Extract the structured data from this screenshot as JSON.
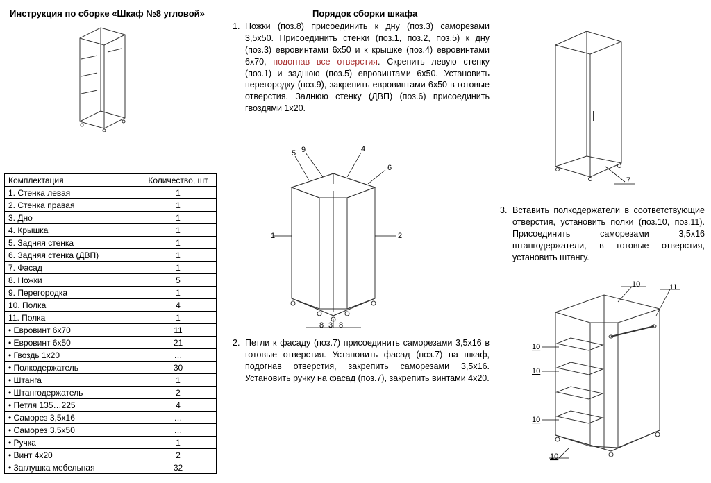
{
  "titles": {
    "left": "Инструкция по сборке «Шкаф №8 угловой»",
    "center": "Порядок сборки шкафа"
  },
  "table": {
    "headers": [
      "Комплектация",
      "Количество, шт"
    ],
    "rows": [
      [
        "1.  Стенка левая",
        "1"
      ],
      [
        "2.  Стенка правая",
        "1"
      ],
      [
        "3.  Дно",
        "1"
      ],
      [
        "4.  Крышка",
        "1"
      ],
      [
        "5.  Задняя стенка",
        "1"
      ],
      [
        "6.  Задняя стенка (ДВП)",
        "1"
      ],
      [
        "7.  Фасад",
        "1"
      ],
      [
        "8.  Ножки",
        "5"
      ],
      [
        "9.  Перегородка",
        "1"
      ],
      [
        "10.     Полка",
        "4"
      ],
      [
        "11.     Полка",
        "1"
      ],
      [
        "•   Евровинт 6х70",
        "11"
      ],
      [
        "•   Евровинт 6х50",
        "21"
      ],
      [
        "•   Гвоздь 1х20",
        "…"
      ],
      [
        "•   Полкодержатель",
        "30"
      ],
      [
        "•   Штанга",
        "1"
      ],
      [
        "•   Штангодержатель",
        "2"
      ],
      [
        "•   Петля 135…225",
        "4"
      ],
      [
        "•   Саморез  3,5х16",
        "…"
      ],
      [
        "•   Саморез  3,5х50",
        "…"
      ],
      [
        "•   Ручка",
        "1"
      ],
      [
        "•   Винт 4х20",
        "2"
      ],
      [
        "•   Заглушка мебельная",
        "32"
      ]
    ]
  },
  "steps": {
    "s1_num": "1.",
    "s1_a": "Ножки (поз.8) присоединить к дну (поз.3) саморезами 3,5х50. Присоединить стенки (поз.1, поз.2, поз.5) к дну (поз.3) евровинтами 6х50 и к крышке (поз.4) евровинтами 6х70, ",
    "s1_red": "подогнав все отверстия",
    "s1_b": ". Скрепить левую стенку (поз.1) и заднюю (поз.5) евровинтами 6х50. Установить перегородку (поз.9), закрепить евровинтами 6х50 в готовые отверстия. Заднюю стенку (ДВП) (поз.6) присоединить гвоздями 1х20.",
    "s2_num": "2.",
    "s2_a": "Петли к фасаду (поз.7) присоединить саморезами 3,5х16 в готовые отверстия. Установить фасад (поз.7) на шкаф, подогнав отверстия, закрепить саморезами 3,5х16. Установить ручку на фасад (поз.7), закрепить винтами 4х20.",
    "s3_num": "3.",
    "s3_a": "Вставить полкодержатели в соответствующие отверстия, установить полки (поз.10, поз.11). Присоединить саморезами 3,5х16 штангодержатели, в готовые отверстия, установить штангу."
  },
  "callouts": {
    "c1": "1",
    "c2": "2",
    "c3": "3",
    "c4": "4",
    "c5": "5",
    "c6": "6",
    "c7": "7",
    "c8": "8",
    "c9": "9",
    "c10": "10",
    "c11": "11"
  },
  "style": {
    "stroke": "#333333",
    "stroke_width": 1,
    "leader_stroke": "#000000"
  }
}
